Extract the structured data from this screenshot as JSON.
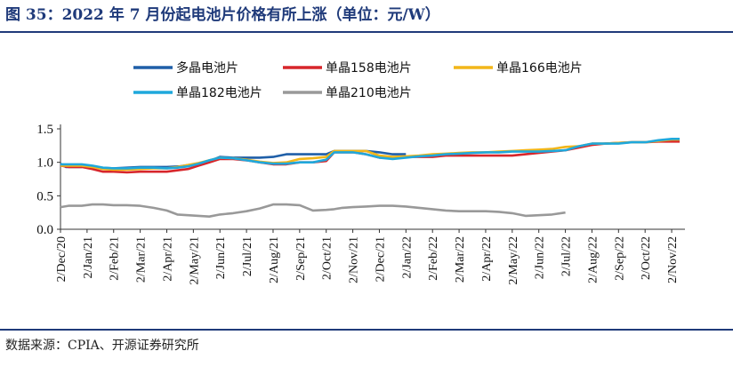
{
  "title": "图 35：2022 年 7 月份起电池片价格有所上涨（单位：元/W）",
  "source": "数据来源：CPIA、开源证券研究所",
  "chart_data": {
    "type": "line",
    "title": "图 35：2022 年 7 月份起电池片价格有所上涨（单位：元/W）",
    "xlabel": "",
    "ylabel": "",
    "ylim": [
      0,
      1.5
    ],
    "yticks": [
      "0.0",
      "0.5",
      "1.0",
      "1.5"
    ],
    "x_tick_labels": [
      "2/Dec/20",
      "2/Jan/21",
      "2/Feb/21",
      "2/Mar/21",
      "2/Apr/21",
      "2/May/21",
      "2/Jun/21",
      "2/Jul/21",
      "2/Aug/21",
      "2/Sep/21",
      "2/Oct/21",
      "2/Nov/21",
      "2/Dec/21",
      "2/Jan/22",
      "2/Feb/22",
      "2/Mar/22",
      "2/Apr/22",
      "2/May/22",
      "2/Jun/22",
      "2/Jul/22",
      "2/Aug/22",
      "2/Sep/22",
      "2/Oct/22",
      "2/Nov/22"
    ],
    "grid": false,
    "legend_position": "top",
    "series": [
      {
        "name": "多晶电池片",
        "color": "#1f5fa8",
        "x": [
          0,
          0.2,
          0.8,
          1.0,
          1.5,
          2,
          2.5,
          3,
          3.5,
          4,
          4.5,
          5,
          5.3,
          5.6,
          6,
          6.5,
          7,
          7.5,
          8,
          8.5,
          9,
          9.5,
          10,
          10.3,
          10.6,
          11,
          11.5,
          12,
          12.5,
          13
        ],
        "values": [
          0.98,
          0.93,
          0.93,
          0.95,
          0.92,
          0.91,
          0.92,
          0.93,
          0.93,
          0.93,
          0.94,
          0.97,
          0.98,
          1.02,
          1.08,
          1.07,
          1.07,
          1.07,
          1.08,
          1.12,
          1.12,
          1.12,
          1.12,
          1.17,
          1.17,
          1.17,
          1.17,
          1.15,
          1.12,
          1.12
        ]
      },
      {
        "name": "单晶158电池片",
        "color": "#d7262b",
        "x": [
          0,
          0.3,
          0.8,
          1.2,
          1.6,
          2,
          2.5,
          3,
          3.5,
          4,
          4.4,
          4.8,
          5.2,
          5.6,
          6,
          6.5,
          7,
          7.5,
          8,
          8.5,
          9,
          9.5,
          10,
          10.3,
          10.6,
          11,
          11.5,
          12,
          12.5,
          13,
          13.5,
          14,
          14.5,
          15,
          15.5,
          16,
          16.5,
          17,
          17.5,
          18,
          18.5,
          19,
          19.5,
          20,
          20.5,
          21,
          21.5,
          22,
          22.5,
          23,
          23.3
        ],
        "values": [
          0.95,
          0.93,
          0.93,
          0.9,
          0.86,
          0.86,
          0.85,
          0.86,
          0.86,
          0.86,
          0.88,
          0.9,
          0.95,
          1.0,
          1.05,
          1.05,
          1.03,
          1.0,
          0.97,
          0.97,
          1.0,
          1.0,
          1.02,
          1.15,
          1.15,
          1.15,
          1.12,
          1.07,
          1.07,
          1.08,
          1.08,
          1.08,
          1.1,
          1.1,
          1.1,
          1.1,
          1.1,
          1.1,
          1.12,
          1.14,
          1.16,
          1.18,
          1.22,
          1.26,
          1.28,
          1.29,
          1.3,
          1.3,
          1.31,
          1.31,
          1.31
        ]
      },
      {
        "name": "单晶166电池片",
        "color": "#f2b619",
        "x": [
          0,
          0.3,
          0.8,
          1.2,
          1.6,
          2,
          2.5,
          3,
          3.5,
          4,
          4.4,
          4.8,
          5.2,
          5.6,
          6,
          6.5,
          7,
          7.5,
          8,
          8.5,
          9,
          9.5,
          10,
          10.3,
          10.6,
          11,
          11.5,
          12,
          12.5,
          13,
          13.5,
          14,
          14.5,
          15,
          15.5,
          16,
          16.5,
          17,
          17.5,
          18,
          18.5,
          19,
          19.5,
          20,
          20.5,
          21,
          21.5,
          22,
          22.5,
          23,
          23.3
        ],
        "values": [
          0.95,
          0.95,
          0.95,
          0.93,
          0.9,
          0.89,
          0.89,
          0.9,
          0.91,
          0.91,
          0.93,
          0.96,
          0.99,
          1.03,
          1.07,
          1.06,
          1.04,
          1.01,
          0.99,
          1.0,
          1.05,
          1.06,
          1.08,
          1.17,
          1.17,
          1.17,
          1.17,
          1.1,
          1.08,
          1.09,
          1.1,
          1.12,
          1.13,
          1.14,
          1.15,
          1.15,
          1.16,
          1.17,
          1.18,
          1.19,
          1.2,
          1.23,
          1.24,
          1.28,
          1.28,
          1.29,
          1.3,
          1.3,
          1.32,
          1.34,
          1.34
        ]
      },
      {
        "name": "单晶182电池片",
        "color": "#1fa8dc",
        "x": [
          0,
          0.3,
          0.8,
          1.2,
          1.6,
          2,
          2.5,
          3,
          3.5,
          4,
          4.4,
          4.8,
          5.2,
          5.6,
          6,
          6.5,
          7,
          7.5,
          8,
          8.5,
          9,
          9.5,
          10,
          10.3,
          10.6,
          11,
          11.5,
          12,
          12.5,
          13,
          13.5,
          14,
          14.5,
          15,
          15.5,
          16,
          16.5,
          17,
          17.5,
          18,
          18.5,
          19,
          19.5,
          20,
          20.5,
          21,
          21.5,
          22,
          22.5,
          23,
          23.3
        ],
        "values": [
          0.97,
          0.97,
          0.97,
          0.95,
          0.92,
          0.91,
          0.91,
          0.92,
          0.92,
          0.91,
          0.92,
          0.94,
          0.98,
          1.03,
          1.07,
          1.06,
          1.03,
          1.0,
          0.98,
          0.98,
          1.0,
          1.0,
          1.04,
          1.15,
          1.15,
          1.15,
          1.12,
          1.07,
          1.05,
          1.07,
          1.09,
          1.1,
          1.12,
          1.13,
          1.14,
          1.15,
          1.15,
          1.16,
          1.16,
          1.16,
          1.17,
          1.18,
          1.24,
          1.28,
          1.28,
          1.28,
          1.3,
          1.3,
          1.33,
          1.35,
          1.35
        ]
      },
      {
        "name": "单晶210电池片",
        "color": "#999999",
        "x": [
          0,
          0.3,
          0.8,
          1.2,
          1.6,
          2,
          2.5,
          3,
          3.5,
          4,
          4.4,
          4.8,
          5.2,
          5.6,
          6,
          6.5,
          7,
          7.5,
          8,
          8.5,
          9,
          9.5,
          10,
          10.3,
          10.6,
          11,
          11.5,
          12,
          12.5,
          13,
          13.5,
          14,
          14.5,
          15,
          15.5,
          16,
          16.5,
          17,
          17.5,
          18,
          18.5,
          19
        ],
        "values": [
          0.33,
          0.35,
          0.35,
          0.37,
          0.37,
          0.36,
          0.36,
          0.35,
          0.32,
          0.28,
          0.22,
          0.21,
          0.2,
          0.19,
          0.22,
          0.24,
          0.27,
          0.31,
          0.37,
          0.37,
          0.36,
          0.28,
          0.29,
          0.3,
          0.32,
          0.33,
          0.34,
          0.35,
          0.35,
          0.34,
          0.32,
          0.3,
          0.28,
          0.27,
          0.27,
          0.27,
          0.26,
          0.24,
          0.2,
          0.21,
          0.22,
          0.25
        ]
      }
    ]
  }
}
